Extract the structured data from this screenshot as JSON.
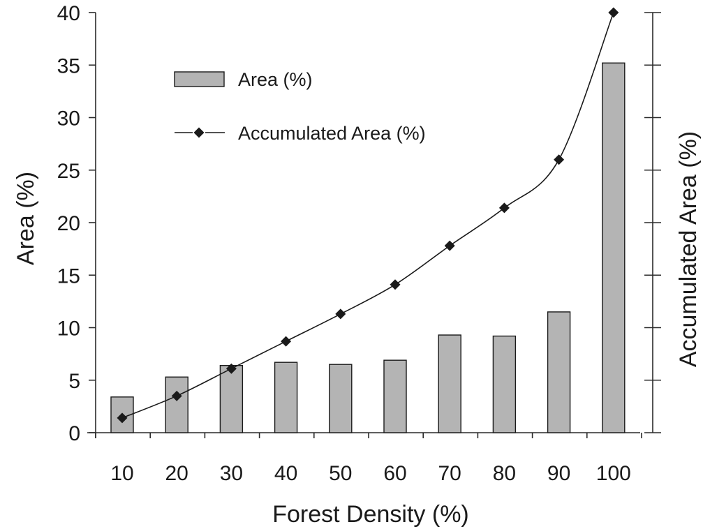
{
  "chart_data": {
    "type": "bar",
    "title": "",
    "categories": [
      "10",
      "20",
      "30",
      "40",
      "50",
      "60",
      "70",
      "80",
      "90",
      "100"
    ],
    "xlabel": "Forest Density (%)",
    "ylabel": "Area (%)",
    "y2label": "Accumulated Area (%)",
    "ylim": [
      0,
      40
    ],
    "yticks": [
      0,
      5,
      10,
      15,
      20,
      25,
      30,
      35,
      40
    ],
    "grid": false,
    "legend_position": "top-left",
    "series": [
      {
        "name": "Area (%)",
        "type": "bar",
        "axis": "left",
        "color": "#b4b4b4",
        "values": [
          3.4,
          5.3,
          6.4,
          6.7,
          6.5,
          6.9,
          9.3,
          9.2,
          11.5,
          35.2
        ]
      },
      {
        "name": "Accumulated Area (%)",
        "type": "line",
        "axis": "right",
        "marker": "diamond",
        "color": "#1a1a1a",
        "values": [
          1.4,
          3.5,
          6.1,
          8.7,
          11.3,
          14.1,
          17.8,
          21.4,
          26.0,
          40.0
        ]
      }
    ]
  }
}
